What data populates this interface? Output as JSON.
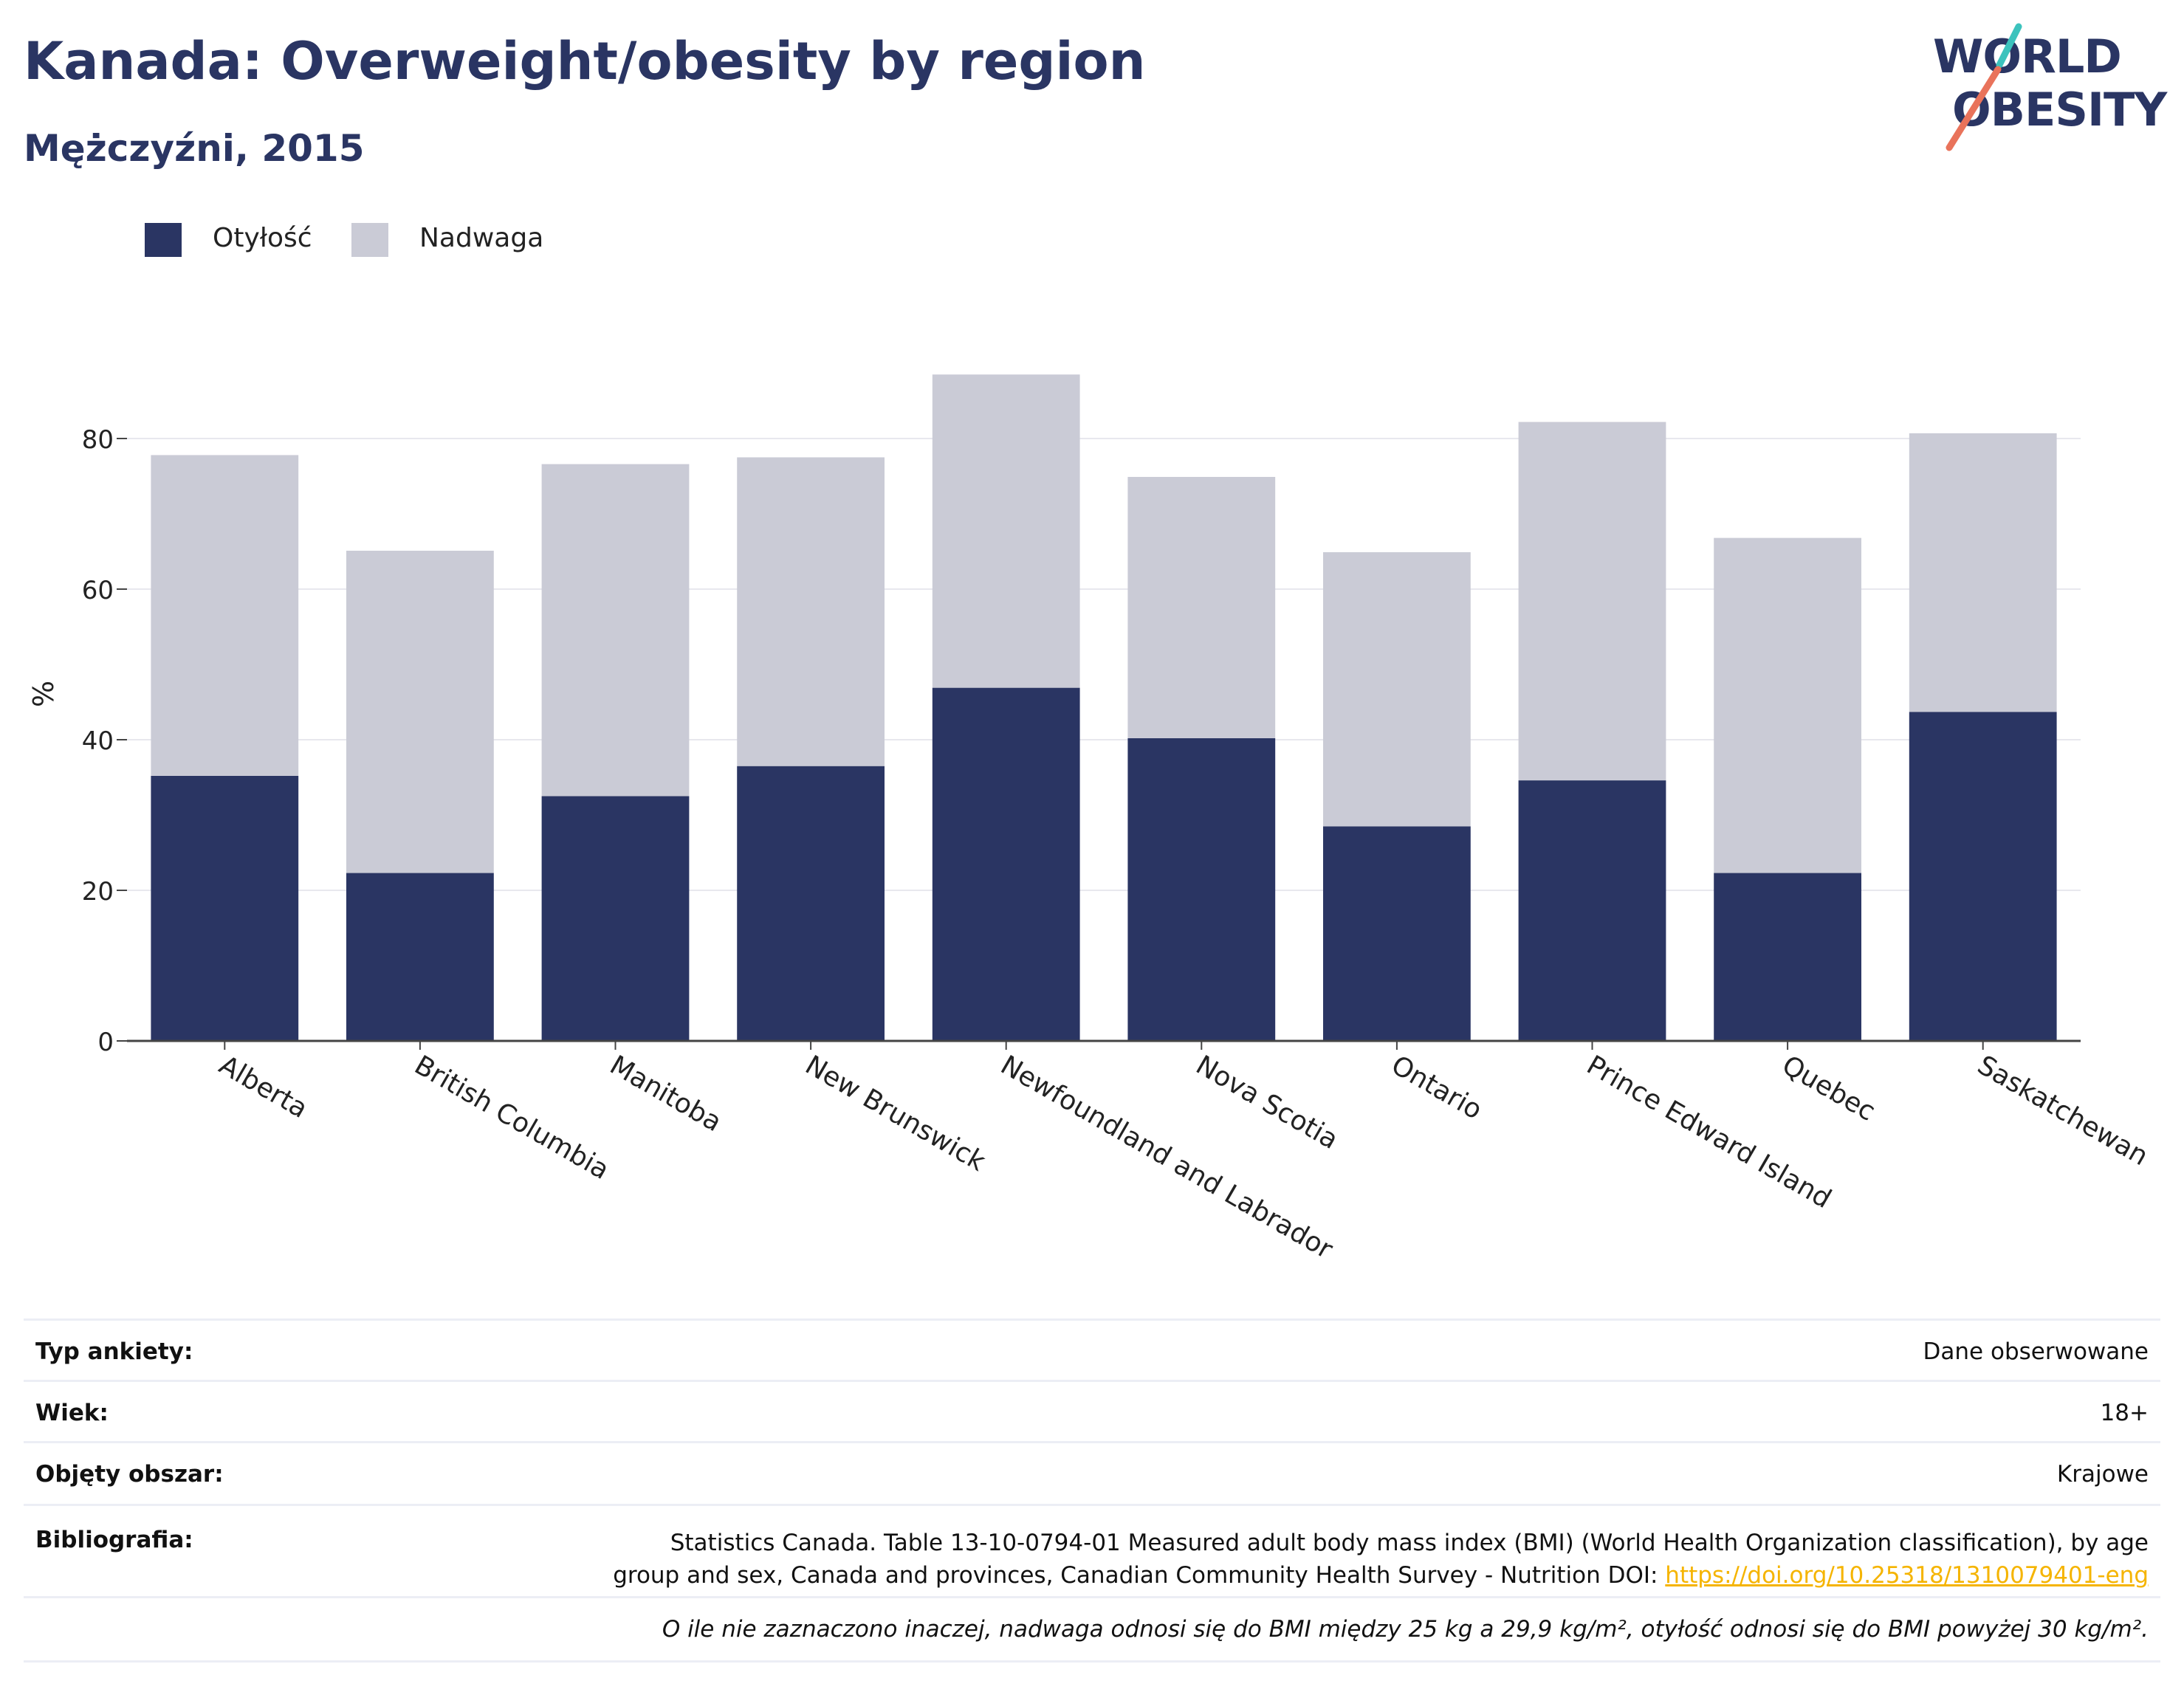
{
  "header": {
    "title": "Kanada: Overweight/obesity by region",
    "subtitle": "Mężczyźni, 2015"
  },
  "logo": {
    "line1": "WORLD",
    "line2": "OBESITY",
    "colors": {
      "text": "#2a3563",
      "slash_top": "#3cc3bd",
      "slash_bottom": "#e9735b"
    }
  },
  "legend": [
    {
      "label": "Otyłość",
      "color": "#2a3563"
    },
    {
      "label": "Nadwaga",
      "color": "#cacbd6"
    }
  ],
  "chart_data": {
    "type": "bar",
    "stacked": true,
    "categories": [
      "Alberta",
      "British Columbia",
      "Manitoba",
      "New Brunswick",
      "Newfoundland and Labrador",
      "Nova Scotia",
      "Ontario",
      "Prince Edward Island",
      "Quebec",
      "Saskatchewan"
    ],
    "series": [
      {
        "name": "Otyłość",
        "color": "#2a3563",
        "values": [
          35.2,
          22.3,
          32.5,
          36.5,
          46.9,
          40.2,
          28.5,
          34.6,
          22.3,
          43.7
        ]
      },
      {
        "name": "Nadwaga",
        "color": "#cacbd6",
        "values": [
          42.6,
          42.8,
          44.1,
          41.0,
          41.6,
          34.7,
          36.4,
          47.6,
          44.5,
          37.0
        ]
      }
    ],
    "ylabel": "%",
    "ylim": [
      0,
      90
    ],
    "yticks": [
      0,
      20,
      40,
      60,
      80
    ],
    "grid": true,
    "legend_position": "top-left"
  },
  "meta": {
    "rows": [
      {
        "label": "Typ ankiety:",
        "value": "Dane obserwowane"
      },
      {
        "label": "Wiek:",
        "value": "18+"
      },
      {
        "label": "Objęty obszar:",
        "value": "Krajowe"
      }
    ],
    "bibliography": {
      "label": "Bibliografia:",
      "line1": "Statistics Canada. Table 13-10-0794-01 Measured adult body mass index (BMI) (World Health Organization classification), by age",
      "line2": "group and sex, Canada and provinces, Canadian Community Health Survey - Nutrition DOI: ",
      "link": "https://doi.org/10.25318/1310079401-eng",
      "link_color": "#f5b400"
    },
    "note": "O ile nie zaznaczono inaczej, nadwaga odnosi się do BMI między 25 kg a 29,9 kg/m², otyłość odnosi się do BMI powyżej 30 kg/m²."
  }
}
